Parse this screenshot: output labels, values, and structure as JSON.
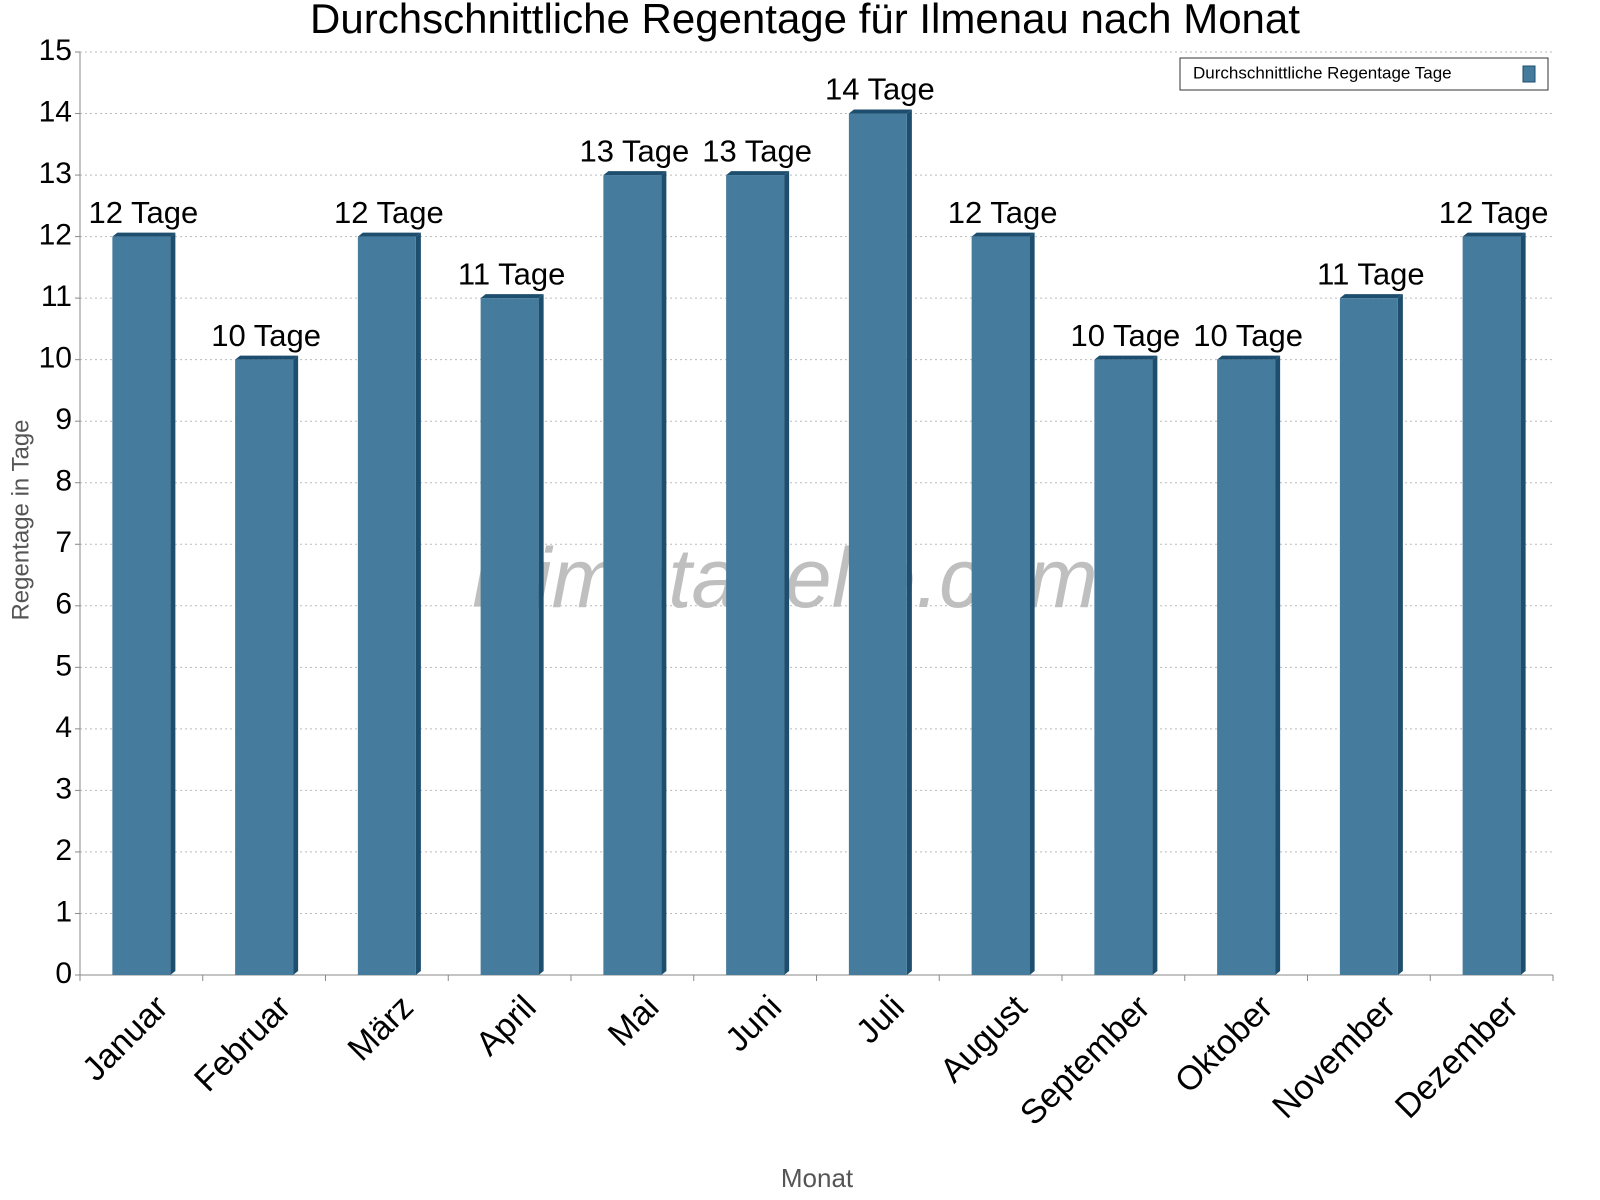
{
  "chart_data": {
    "type": "bar",
    "title": "Durchschnittliche Regentage für Ilmenau nach Monat",
    "x_label": "Monat",
    "y_label": "Regentage in Tage",
    "watermark": "klimatabelle.com",
    "categories": [
      "Januar",
      "Februar",
      "März",
      "April",
      "Mai",
      "Juni",
      "Juli",
      "August",
      "September",
      "Oktober",
      "November",
      "Dezember"
    ],
    "series": [
      {
        "name": "Durchschnittliche Regentage Tage",
        "color": "#457b9d",
        "values": [
          12,
          10,
          12,
          11,
          13,
          13,
          14,
          12,
          10,
          10,
          11,
          12
        ],
        "value_labels": [
          "12 Tage",
          "10 Tage",
          "12 Tage",
          "11 Tage",
          "13 Tage",
          "13 Tage",
          "14 Tage",
          "12 Tage",
          "10 Tage",
          "10 Tage",
          "11 Tage",
          "12 Tage"
        ]
      }
    ],
    "ylim": [
      0,
      15
    ],
    "yticks": [
      0,
      1,
      2,
      3,
      4,
      5,
      6,
      7,
      8,
      9,
      10,
      11,
      12,
      13,
      14,
      15
    ],
    "grid": true,
    "legend": "top-right"
  }
}
